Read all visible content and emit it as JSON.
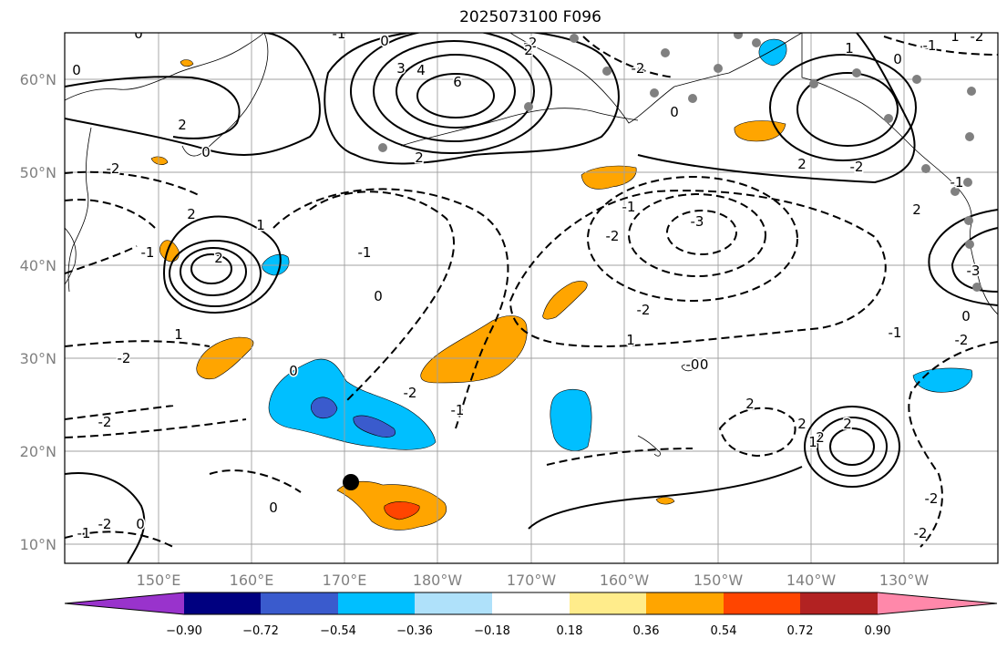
{
  "title": "2025073100 F096",
  "map": {
    "lat_ticks": [
      "60°N",
      "50°N",
      "40°N",
      "30°N",
      "20°N",
      "10°N"
    ],
    "lon_ticks": [
      "150°E",
      "160°E",
      "170°E",
      "180°W",
      "170°W",
      "160°W",
      "150°W",
      "140°W",
      "130°W"
    ],
    "contour_labels": [
      {
        "t": "0"
      },
      {
        "t": "-1"
      },
      {
        "t": "0"
      },
      {
        "t": "3"
      },
      {
        "t": "4"
      },
      {
        "t": "6"
      },
      {
        "t": "2"
      },
      {
        "t": "-2"
      },
      {
        "t": "2"
      },
      {
        "t": "0"
      },
      {
        "t": "0"
      },
      {
        "t": "2"
      },
      {
        "t": "-2"
      },
      {
        "t": "1"
      },
      {
        "t": "0"
      },
      {
        "t": "-2"
      },
      {
        "t": "1"
      },
      {
        "t": "2"
      },
      {
        "t": "2"
      },
      {
        "t": "-2"
      },
      {
        "t": "0"
      },
      {
        "t": "1"
      },
      {
        "t": "-3"
      },
      {
        "t": "-2"
      },
      {
        "t": "-1"
      },
      {
        "t": "1"
      },
      {
        "t": "-2"
      },
      {
        "t": "-1"
      },
      {
        "t": "2"
      },
      {
        "t": "-2"
      },
      {
        "t": "1"
      },
      {
        "t": "-1"
      },
      {
        "t": "-3"
      },
      {
        "t": "-2"
      },
      {
        "t": "0"
      },
      {
        "t": "2"
      },
      {
        "t": "-0"
      },
      {
        "t": "-1"
      },
      {
        "t": "-2"
      },
      {
        "t": "-2"
      },
      {
        "t": "-2"
      },
      {
        "t": "-1"
      },
      {
        "t": "0"
      },
      {
        "t": "0"
      },
      {
        "t": "-1"
      },
      {
        "t": "2"
      },
      {
        "t": "-2"
      },
      {
        "t": "2"
      },
      {
        "t": "0"
      },
      {
        "t": "-2"
      },
      {
        "t": "2"
      },
      {
        "t": "2"
      },
      {
        "t": "-0"
      },
      {
        "t": "-1"
      },
      {
        "t": "-1"
      },
      {
        "t": "0"
      },
      {
        "t": "-2"
      },
      {
        "t": "1"
      },
      {
        "t": "1"
      }
    ]
  },
  "colorbar": {
    "labels": [
      "−0.90",
      "−0.72",
      "−0.54",
      "−0.36",
      "−0.18",
      "0.18",
      "0.36",
      "0.54",
      "0.72",
      "0.90"
    ],
    "colors": [
      "#9933cc",
      "#000080",
      "#3a5bcd",
      "#00bfff",
      "#afe1fa",
      "#ffffff",
      "#ffec8b",
      "#ffa500",
      "#ff4500",
      "#b22222",
      "#ff88aa"
    ]
  }
}
